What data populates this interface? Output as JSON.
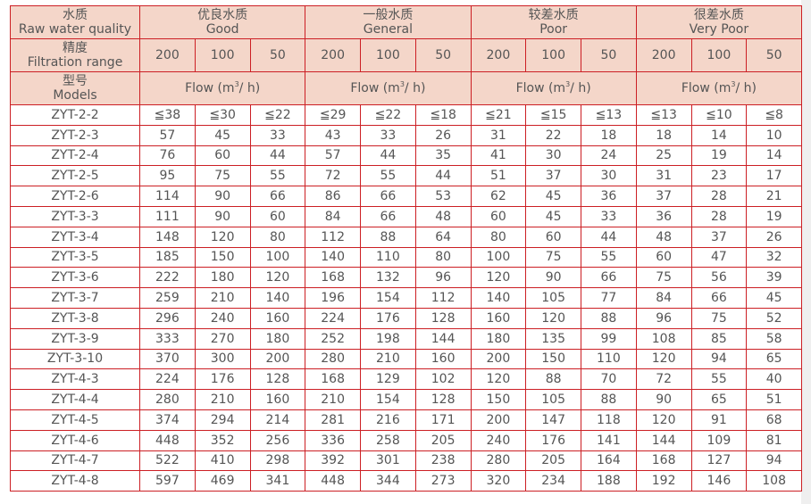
{
  "header": {
    "row1": {
      "cn": "水质",
      "en": "Raw water quality"
    },
    "row2": {
      "cn": "精度",
      "en": "Filtration range"
    },
    "row3": {
      "cn": "型号",
      "en": "Models"
    },
    "groups": [
      {
        "cn": "优良水质",
        "en": "Good"
      },
      {
        "cn": "一般水质",
        "en": "General"
      },
      {
        "cn": "较差水质",
        "en": "Poor"
      },
      {
        "cn": "很差水质",
        "en": "Very Poor"
      }
    ],
    "ranges": [
      "200",
      "100",
      "50"
    ],
    "flow_label_prefix": "Flow (m",
    "flow_label_sup": "3",
    "flow_label_suffix": "/ h)"
  },
  "rows": [
    {
      "model": "ZYT-2-2",
      "values": [
        "≦38",
        "≦30",
        "≦22",
        "≦29",
        "≦22",
        "≦18",
        "≦21",
        "≦15",
        "≦13",
        "≦13",
        "≦10",
        "≦8"
      ]
    },
    {
      "model": "ZYT-2-3",
      "values": [
        "57",
        "45",
        "33",
        "43",
        "33",
        "26",
        "31",
        "22",
        "18",
        "18",
        "14",
        "10"
      ]
    },
    {
      "model": "ZYT-2-4",
      "values": [
        "76",
        "60",
        "44",
        "57",
        "44",
        "35",
        "41",
        "30",
        "24",
        "25",
        "19",
        "14"
      ]
    },
    {
      "model": "ZYT-2-5",
      "values": [
        "95",
        "75",
        "55",
        "72",
        "55",
        "44",
        "51",
        "37",
        "30",
        "31",
        "23",
        "17"
      ]
    },
    {
      "model": "ZYT-2-6",
      "values": [
        "114",
        "90",
        "66",
        "86",
        "66",
        "53",
        "62",
        "45",
        "36",
        "37",
        "28",
        "21"
      ]
    },
    {
      "model": "ZYT-3-3",
      "values": [
        "111",
        "90",
        "60",
        "84",
        "66",
        "48",
        "60",
        "45",
        "33",
        "36",
        "28",
        "19"
      ]
    },
    {
      "model": "ZYT-3-4",
      "values": [
        "148",
        "120",
        "80",
        "112",
        "88",
        "64",
        "80",
        "60",
        "44",
        "48",
        "37",
        "26"
      ]
    },
    {
      "model": "ZYT-3-5",
      "values": [
        "185",
        "150",
        "100",
        "140",
        "110",
        "80",
        "100",
        "75",
        "55",
        "60",
        "47",
        "32"
      ]
    },
    {
      "model": "ZYT-3-6",
      "values": [
        "222",
        "180",
        "120",
        "168",
        "132",
        "96",
        "120",
        "90",
        "66",
        "75",
        "56",
        "39"
      ]
    },
    {
      "model": "ZYT-3-7",
      "values": [
        "259",
        "210",
        "140",
        "196",
        "154",
        "112",
        "140",
        "105",
        "77",
        "84",
        "66",
        "45"
      ]
    },
    {
      "model": "ZYT-3-8",
      "values": [
        "296",
        "240",
        "160",
        "224",
        "176",
        "128",
        "160",
        "120",
        "88",
        "96",
        "75",
        "52"
      ]
    },
    {
      "model": "ZYT-3-9",
      "values": [
        "333",
        "270",
        "180",
        "252",
        "198",
        "144",
        "180",
        "135",
        "99",
        "108",
        "85",
        "58"
      ]
    },
    {
      "model": "ZYT-3-10",
      "values": [
        "370",
        "300",
        "200",
        "280",
        "210",
        "160",
        "200",
        "150",
        "110",
        "120",
        "94",
        "65"
      ]
    },
    {
      "model": "ZYT-4-3",
      "values": [
        "224",
        "176",
        "128",
        "168",
        "129",
        "102",
        "120",
        "88",
        "70",
        "72",
        "55",
        "40"
      ]
    },
    {
      "model": "ZYT-4-4",
      "values": [
        "280",
        "210",
        "160",
        "210",
        "154",
        "128",
        "150",
        "105",
        "88",
        "90",
        "65",
        "51"
      ]
    },
    {
      "model": "ZYT-4-5",
      "values": [
        "374",
        "294",
        "214",
        "281",
        "216",
        "171",
        "200",
        "147",
        "118",
        "120",
        "91",
        "68"
      ]
    },
    {
      "model": "ZYT-4-6",
      "values": [
        "448",
        "352",
        "256",
        "336",
        "258",
        "205",
        "240",
        "176",
        "141",
        "144",
        "109",
        "81"
      ]
    },
    {
      "model": "ZYT-4-7",
      "values": [
        "522",
        "410",
        "298",
        "392",
        "301",
        "238",
        "280",
        "205",
        "164",
        "168",
        "127",
        "94"
      ]
    },
    {
      "model": "ZYT-4-8",
      "values": [
        "597",
        "469",
        "341",
        "448",
        "344",
        "273",
        "320",
        "234",
        "188",
        "192",
        "146",
        "108"
      ]
    }
  ],
  "colors": {
    "border": "#cc1f24",
    "header_bg": "#f4d6c9",
    "text": "#555555"
  }
}
